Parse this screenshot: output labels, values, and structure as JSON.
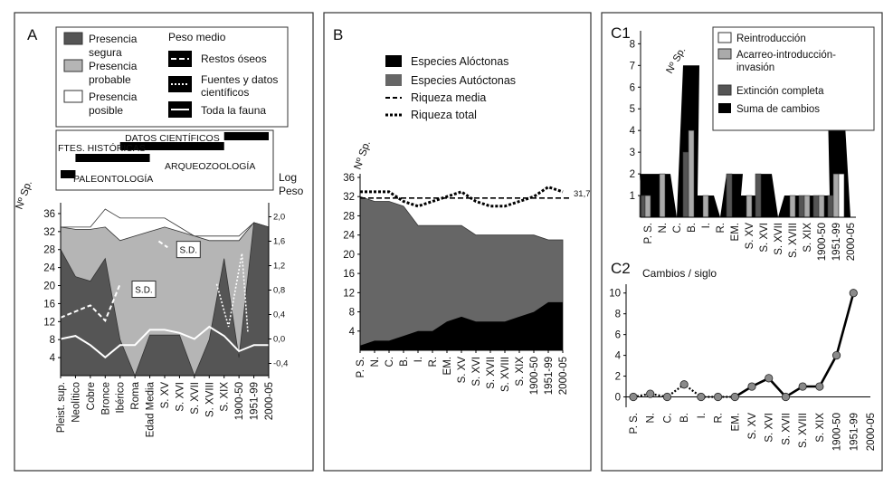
{
  "chart_data": [
    {
      "panel": "A",
      "type": "area",
      "ylabel_left": "Nº Sp.",
      "ylabel_right": "Log Peso",
      "y_left_ticks": [
        4,
        8,
        12,
        16,
        20,
        24,
        28,
        32,
        36
      ],
      "y_right_ticks": [
        "2,0",
        "1,6",
        "1,2",
        "0,8",
        "0,4",
        "0,0",
        "-0,4"
      ],
      "y_left_range": [
        0,
        38
      ],
      "y_right_range": [
        -0.6,
        2.2
      ],
      "categories": [
        "Pleist. sup.",
        "Neolítico",
        "Cobre",
        "Bronce",
        "Ibérico",
        "Roma",
        "Edad Media",
        "S. XV",
        "S. XVI",
        "S. XVII",
        "S. XVIII",
        "S. XIX",
        "1900-50",
        "1951-99",
        "2000-05"
      ],
      "legend_presence": [
        "Presencia segura",
        "Presencia probable",
        "Presencia posible"
      ],
      "legend_weight_title": "Peso medio",
      "legend_weight": [
        "Restos óseos",
        "Fuentes y datos científicos",
        "Toda la fauna"
      ],
      "series": [
        {
          "name": "Presencia posible",
          "values": [
            33,
            33,
            33,
            37,
            35,
            35,
            35,
            35,
            33,
            31,
            31,
            31,
            31,
            34,
            33
          ]
        },
        {
          "name": "Presencia probable",
          "values": [
            33,
            32.5,
            32.5,
            33,
            30,
            31,
            32,
            33,
            32,
            31,
            30,
            30,
            30,
            34,
            33
          ]
        },
        {
          "name": "Presencia segura",
          "values": [
            28,
            22,
            21,
            26,
            8,
            0,
            9,
            9,
            9,
            0,
            8,
            26,
            4,
            34,
            33
          ]
        }
      ],
      "weight_series": [
        {
          "name": "Toda la fauna",
          "values": [
            0.0,
            0.05,
            -0.1,
            -0.3,
            -0.1,
            -0.1,
            0.15,
            0.15,
            0.1,
            0.0,
            0.2,
            0.05,
            -0.2,
            -0.1,
            -0.1
          ]
        }
      ],
      "sources_bars": [
        {
          "label": "DATOS CIENTÍFICOS",
          "start": 11,
          "end": 14
        },
        {
          "label": "FTES. HISTÓRICAS",
          "start": 4,
          "end": 11
        },
        {
          "label": "ARQUEOZOOLOGÍA",
          "start": 1,
          "end": 6
        },
        {
          "label": "PALEONTOLOGÍA",
          "start": 0,
          "end": 1
        }
      ],
      "annotations": [
        "S.D.",
        "S.D."
      ]
    },
    {
      "panel": "B",
      "type": "area",
      "ylabel": "Nº Sp.",
      "ylim": [
        0,
        36
      ],
      "y_ticks": [
        4,
        8,
        12,
        16,
        20,
        24,
        28,
        32,
        36
      ],
      "categories": [
        "P. S.",
        "N.",
        "C.",
        "B.",
        "I.",
        "R.",
        "EM.",
        "S. XV",
        "S. XVI",
        "S. XVII",
        "S. XVIII",
        "S. XIX",
        "1900-50",
        "1951-99",
        "2000-05"
      ],
      "legend": [
        "Especies Alóctonas",
        "Especies Autóctonas",
        "Riqueza media",
        "Riqueza total"
      ],
      "series": [
        {
          "name": "Especies Alóctonas",
          "values": [
            1,
            2,
            2,
            3,
            4,
            4,
            6,
            7,
            6,
            6,
            6,
            7,
            8,
            10,
            10
          ]
        },
        {
          "name": "Especies Autóctonas",
          "values": [
            31,
            29,
            29,
            27,
            22,
            22,
            20,
            19,
            18,
            18,
            18,
            17,
            16,
            13,
            13
          ]
        },
        {
          "name": "Riqueza total",
          "values": [
            33,
            33,
            33,
            31,
            30,
            31,
            32,
            33,
            31,
            30,
            30,
            31,
            32,
            34,
            33
          ]
        },
        {
          "name": "Riqueza media",
          "values": [
            31.7,
            31.7,
            31.7,
            31.7,
            31.7,
            31.7,
            31.7,
            31.7,
            31.7,
            31.7,
            31.7,
            31.7,
            31.7,
            31.7,
            31.7
          ]
        }
      ],
      "mean_label": "31,7"
    },
    {
      "panel": "C1",
      "type": "bar",
      "ylabel": "Nº Sp.",
      "ylim": [
        0,
        8.6
      ],
      "y_ticks": [
        1,
        2,
        3,
        4,
        5,
        6,
        7,
        8
      ],
      "categories": [
        "P. S.",
        "N.",
        "C.",
        "B.",
        "I.",
        "R.",
        "EM.",
        "S. XV",
        "S. XVI",
        "S. XVII",
        "S. XVIII",
        "S. XIX",
        "1900-50",
        "1951-99",
        "2000-05"
      ],
      "legend": [
        "Reintroducción",
        "Acarreo-introducción-invasión",
        "Extinción completa",
        "Suma de cambios"
      ],
      "series": [
        {
          "name": "Suma de cambios",
          "values": [
            2,
            2,
            0,
            7,
            1,
            0,
            2,
            1,
            2,
            0,
            1,
            1,
            1,
            5,
            0
          ]
        },
        {
          "name": "Extinción completa",
          "values": [
            1,
            0,
            0,
            3,
            0,
            0,
            2,
            0,
            2,
            0,
            0,
            1,
            1,
            1,
            0
          ]
        },
        {
          "name": "Acarreo-introducción-invasión",
          "values": [
            1,
            2,
            0,
            4,
            1,
            0,
            0,
            1,
            0,
            0,
            1,
            1,
            1,
            2,
            0
          ]
        },
        {
          "name": "Reintroducción",
          "values": [
            0,
            0,
            0,
            0,
            0,
            0,
            0,
            0,
            0,
            0,
            0,
            0,
            0,
            2,
            0
          ]
        }
      ]
    },
    {
      "panel": "C2",
      "type": "line",
      "title": "Cambios / siglo",
      "ylim": [
        -1,
        10.5
      ],
      "y_ticks": [
        0,
        2,
        4,
        6,
        8,
        10
      ],
      "categories": [
        "P. S.",
        "N.",
        "C.",
        "B.",
        "I.",
        "R.",
        "EM.",
        "S. XV",
        "S. XVI",
        "S. XVII",
        "S. XVIII",
        "S. XIX",
        "1900-50",
        "1951-99",
        "2000-05"
      ],
      "series": [
        {
          "values": [
            0,
            0.3,
            0,
            1.2,
            0,
            0,
            0,
            1,
            1.8,
            0,
            1,
            1,
            4,
            10,
            null
          ]
        }
      ]
    }
  ],
  "labels": {
    "a": "A",
    "b": "B",
    "c1": "C1",
    "c2": "C2"
  }
}
